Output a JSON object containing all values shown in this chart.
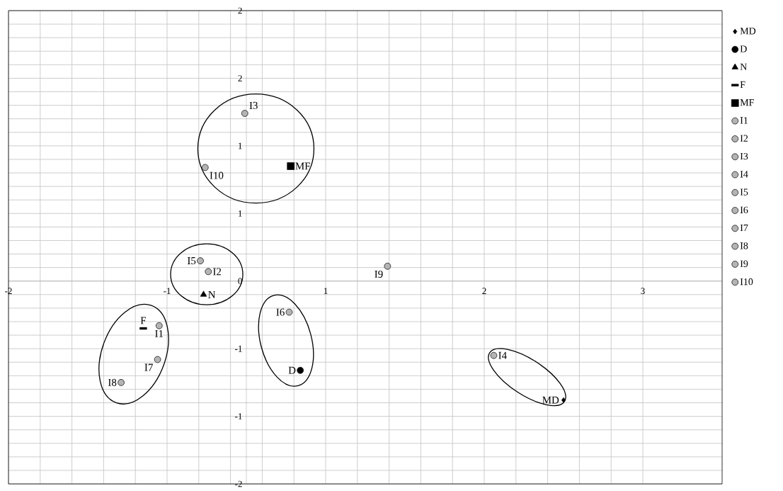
{
  "chart_data": {
    "type": "scatter",
    "xlim": [
      -1.5,
      3.0
    ],
    "ylim": [
      -1.5,
      2.0
    ],
    "xticks": [
      {
        "value": -1.5,
        "label": "-2"
      },
      {
        "value": -0.5,
        "label": "-1"
      },
      {
        "value": 0.5,
        "label": "1"
      },
      {
        "value": 1.5,
        "label": "2"
      },
      {
        "value": 2.5,
        "label": "3"
      }
    ],
    "yticks": [
      {
        "value": -1.5,
        "label": "-2"
      },
      {
        "value": -1.0,
        "label": "-1"
      },
      {
        "value": -0.5,
        "label": "-1"
      },
      {
        "value": 0,
        "label": "0"
      },
      {
        "value": 0.5,
        "label": "1"
      },
      {
        "value": 1.0,
        "label": "1"
      },
      {
        "value": 1.5,
        "label": "2"
      },
      {
        "value": 2.0,
        "label": "2"
      }
    ],
    "grid": true,
    "legend": "right",
    "series": [
      {
        "name": "MD",
        "color": "#000000",
        "marker": "diamond",
        "x": [
          2.0
        ],
        "values": [
          -0.88
        ]
      },
      {
        "name": "D",
        "color": "#000000",
        "marker": "circle",
        "x": [
          0.34
        ],
        "values": [
          -0.66
        ]
      },
      {
        "name": "N",
        "color": "#000000",
        "marker": "triangle",
        "x": [
          -0.27
        ],
        "values": [
          -0.1
        ]
      },
      {
        "name": "F",
        "color": "#000000",
        "marker": "square",
        "x": [
          -0.65
        ],
        "values": [
          -0.35
        ]
      },
      {
        "name": "MF",
        "color": "#000000",
        "marker": "square",
        "x": [
          0.28
        ],
        "values": [
          0.85
        ]
      },
      {
        "name": "I1",
        "color": "#b4b4b4",
        "marker": "circle",
        "x": [
          -0.55
        ],
        "values": [
          -0.33
        ]
      },
      {
        "name": "I2",
        "color": "#b4b4b4",
        "marker": "circle",
        "x": [
          -0.24
        ],
        "values": [
          0.07
        ]
      },
      {
        "name": "I3",
        "color": "#b4b4b4",
        "marker": "circle",
        "x": [
          -0.01
        ],
        "values": [
          1.24
        ]
      },
      {
        "name": "I4",
        "color": "#b4b4b4",
        "marker": "circle",
        "x": [
          1.56
        ],
        "values": [
          -0.55
        ]
      },
      {
        "name": "I5",
        "color": "#b4b4b4",
        "marker": "circle",
        "x": [
          -0.29
        ],
        "values": [
          0.15
        ]
      },
      {
        "name": "I6",
        "color": "#b4b4b4",
        "marker": "circle",
        "x": [
          0.27
        ],
        "values": [
          -0.23
        ]
      },
      {
        "name": "I7",
        "color": "#b4b4b4",
        "marker": "circle",
        "x": [
          -0.56
        ],
        "values": [
          -0.58
        ]
      },
      {
        "name": "I8",
        "color": "#b4b4b4",
        "marker": "circle",
        "x": [
          -0.79
        ],
        "values": [
          -0.75
        ]
      },
      {
        "name": "I9",
        "color": "#b4b4b4",
        "marker": "circle",
        "x": [
          0.89
        ],
        "values": [
          0.11
        ]
      },
      {
        "name": "I10",
        "color": "#b4b4b4",
        "marker": "circle",
        "x": [
          -0.26
        ],
        "values": [
          0.84
        ]
      }
    ]
  }
}
